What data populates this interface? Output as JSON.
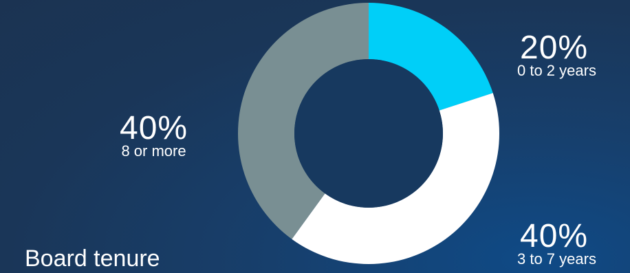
{
  "chart_data": {
    "type": "pie",
    "donut": true,
    "title": "Board tenure",
    "slices": [
      {
        "label": "0 to 2 years",
        "value": 20,
        "value_label": "20%",
        "color": "#00cff8"
      },
      {
        "label": "3 to 7 years",
        "value": 40,
        "value_label": "40%",
        "color": "#ffffff"
      },
      {
        "label": "8 or more",
        "value": 40,
        "value_label": "40%",
        "color": "#798f93"
      }
    ]
  },
  "colors": {
    "background": "#1a3658",
    "hole": "#17395f",
    "text": "#ffffff"
  }
}
